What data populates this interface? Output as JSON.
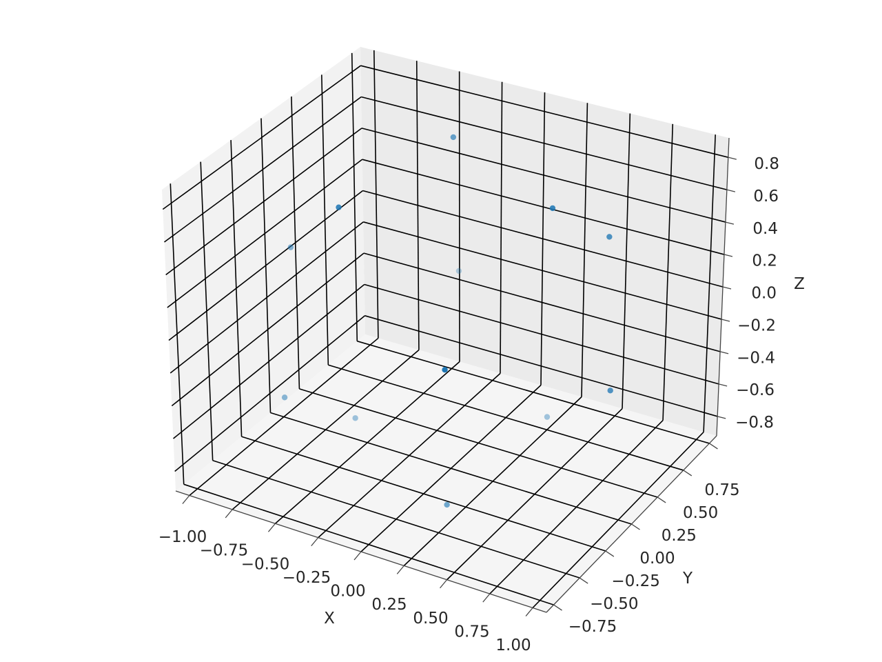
{
  "chart_data": {
    "type": "scatter3d",
    "title": "",
    "xlabel": "X",
    "ylabel": "Y",
    "zlabel": "Z",
    "xlim": [
      -1.08,
      1.08
    ],
    "ylim": [
      -0.82,
      0.82
    ],
    "zlim": [
      -0.92,
      0.92
    ],
    "view": {
      "elev": 30,
      "azim": -60
    },
    "grid": true,
    "depthshade": true,
    "marker_color": "#1f77b4",
    "xticks": [
      -1.0,
      -0.75,
      -0.5,
      -0.25,
      0.0,
      0.25,
      0.5,
      0.75,
      1.0
    ],
    "xtick_labels": [
      "−1.00",
      "−0.75",
      "−0.50",
      "−0.25",
      "0.00",
      "0.25",
      "0.50",
      "0.75",
      "1.00"
    ],
    "yticks": [
      -0.75,
      -0.5,
      -0.25,
      0.0,
      0.25,
      0.5,
      0.75
    ],
    "ytick_labels": [
      "−0.75",
      "−0.50",
      "−0.25",
      "0.00",
      "0.25",
      "0.50",
      "0.75"
    ],
    "zticks": [
      -0.8,
      -0.6,
      -0.4,
      -0.2,
      0.0,
      0.2,
      0.4,
      0.6,
      0.8
    ],
    "ztick_labels": [
      "−0.8",
      "−0.6",
      "−0.4",
      "−0.2",
      "0.0",
      "0.2",
      "0.4",
      "0.6",
      "0.8"
    ],
    "points": [
      {
        "x": -0.22,
        "y": 0.36,
        "z": 0.85
      },
      {
        "x": 0.21,
        "y": -0.36,
        "z": -0.85
      },
      {
        "x": -0.49,
        "y": 0.8,
        "z": -0.33
      },
      {
        "x": 0.49,
        "y": -0.8,
        "z": 0.33
      },
      {
        "x": -0.34,
        "y": -0.44,
        "z": 0.84
      },
      {
        "x": 0.56,
        "y": 0.05,
        "z": 0.82
      },
      {
        "x": -0.78,
        "y": -0.3,
        "z": -0.55
      },
      {
        "x": 0.94,
        "y": 0.0,
        "z": -0.15
      },
      {
        "x": -0.93,
        "y": 0.0,
        "z": 0.16
      },
      {
        "x": 0.73,
        "y": 0.3,
        "z": 0.54
      },
      {
        "x": -0.57,
        "y": 0.0,
        "z": -0.79
      },
      {
        "x": 0.25,
        "y": 0.5,
        "z": -0.84
      }
    ]
  }
}
